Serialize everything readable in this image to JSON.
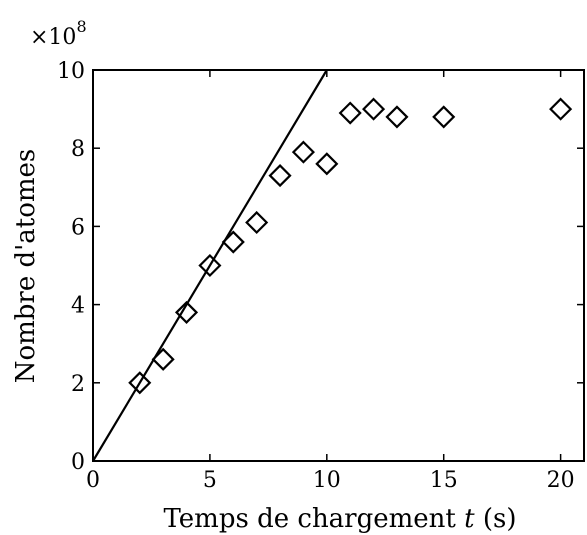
{
  "chart_data": {
    "type": "scatter",
    "xlabel_before": "Temps de chargement ",
    "xlabel_var": "t",
    "xlabel_after": " (s)",
    "ylabel": "Nombre d'atomes",
    "y_multiplier_base": "×10",
    "y_multiplier_exp": "8",
    "xlim": [
      0,
      21
    ],
    "ylim": [
      0,
      10
    ],
    "xticks": [
      0,
      5,
      10,
      15,
      20
    ],
    "xtick_labels": [
      "0",
      "5",
      "10",
      "15",
      "20"
    ],
    "yticks": [
      0,
      2,
      4,
      6,
      8,
      10
    ],
    "ytick_labels": [
      "0",
      "2",
      "4",
      "6",
      "8",
      "10"
    ],
    "grid": false,
    "marker": "diamond-open",
    "color": "#000000",
    "series": [
      {
        "x": [
          2,
          3,
          4,
          5,
          6,
          7,
          8,
          9,
          10,
          11,
          12,
          13,
          15,
          20
        ],
        "y": [
          2.0,
          2.6,
          3.8,
          5.0,
          5.6,
          6.1,
          7.3,
          7.9,
          7.6,
          8.9,
          9.0,
          8.8,
          8.8,
          9.0
        ]
      }
    ],
    "fit_line": {
      "x": [
        0,
        10
      ],
      "y": [
        0,
        10
      ]
    }
  }
}
